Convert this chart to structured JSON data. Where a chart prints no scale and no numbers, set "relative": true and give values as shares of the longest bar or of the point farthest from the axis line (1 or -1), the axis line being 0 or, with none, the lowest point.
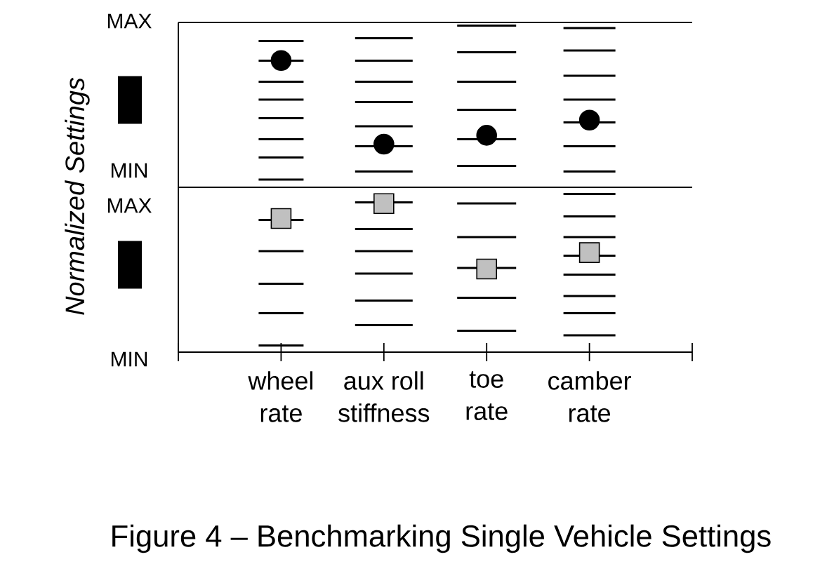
{
  "chart_data": [
    {
      "type": "scatter",
      "relative": true,
      "ylabel": "Normalized Settings",
      "categories": [
        "wheel rate",
        "aux roll stiffness",
        "toe rate",
        "camber rate"
      ],
      "tick_labels": false,
      "series": [
        {
          "marker": "circle",
          "color": "#000000",
          "x": [
            "wheel rate",
            "aux roll stiffness",
            "toe rate",
            "camber rate"
          ],
          "values": [
            1,
            0.34,
            0.41,
            0.53
          ]
        }
      ],
      "annotations": [
        "MAX",
        "MIN"
      ]
    },
    {
      "type": "scatter",
      "relative": true,
      "title": "Figure 4 – Benchmarking Single Vehicle Settings",
      "categories": [
        "wheel rate",
        "aux roll stiffness",
        "toe rate",
        "camber rate"
      ],
      "tick_labels": "x",
      "series": [
        {
          "marker": "square",
          "color": "#c0c0c0",
          "x": [
            "wheel rate",
            "aux roll stiffness",
            "toe rate",
            "camber rate"
          ],
          "values": [
            0.9,
            1,
            0.56,
            0.67
          ]
        }
      ],
      "annotations": [
        "MAX",
        "MIN"
      ]
    }
  ]
}
